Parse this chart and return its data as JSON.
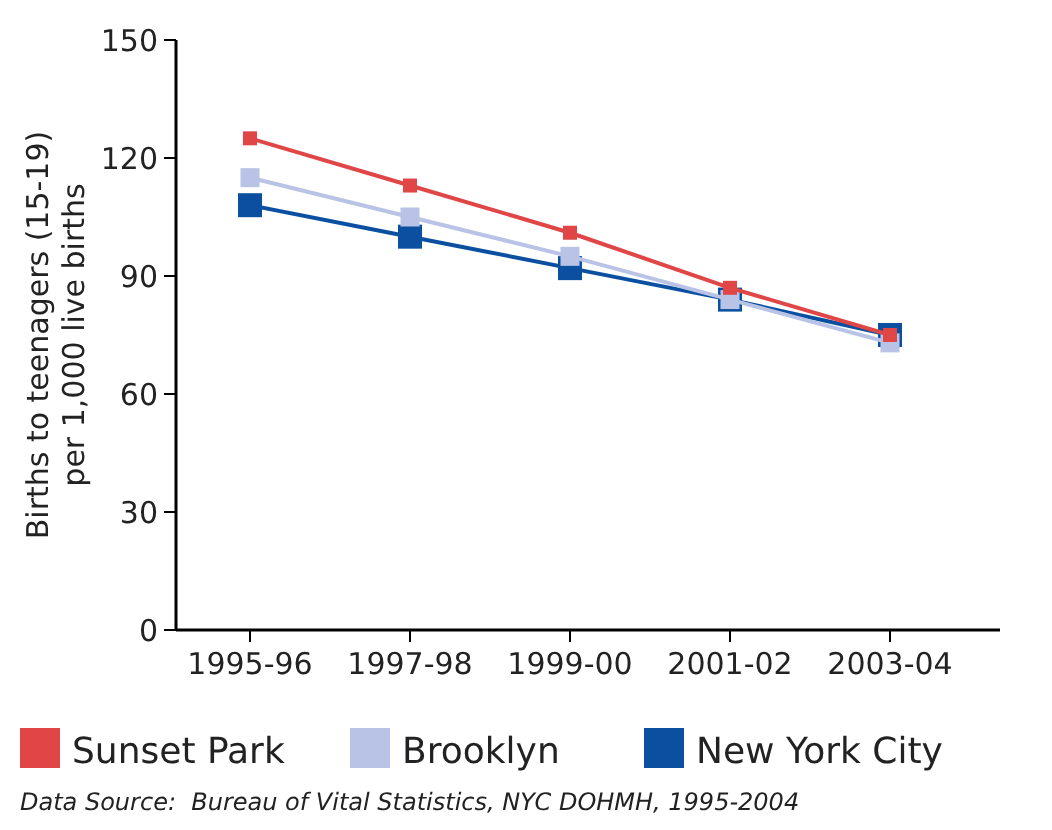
{
  "chart_data": {
    "type": "line",
    "ylabel": "Births to teenagers (15-19) per 1,000 live births",
    "categories": [
      "1995-96",
      "1997-98",
      "1999-00",
      "2001-02",
      "2003-04"
    ],
    "series": [
      {
        "name": "Sunset Park",
        "color": "#e04646",
        "values": [
          125,
          113,
          101,
          87,
          75
        ]
      },
      {
        "name": "Brooklyn",
        "color": "#b9c3e6",
        "values": [
          115,
          105,
          95,
          84,
          73
        ]
      },
      {
        "name": "New York City",
        "color": "#0b50a0",
        "values": [
          108,
          100,
          92,
          84,
          75
        ]
      }
    ],
    "ylim": [
      0,
      150
    ],
    "yticks": [
      0,
      30,
      60,
      90,
      120,
      150
    ],
    "marker": "square",
    "line_style": "solid",
    "grid": false,
    "legend": "bottom",
    "annotations": [
      "Data Source:  Bureau of Vital Statistics, NYC DOHMH, 1995-2004"
    ]
  }
}
